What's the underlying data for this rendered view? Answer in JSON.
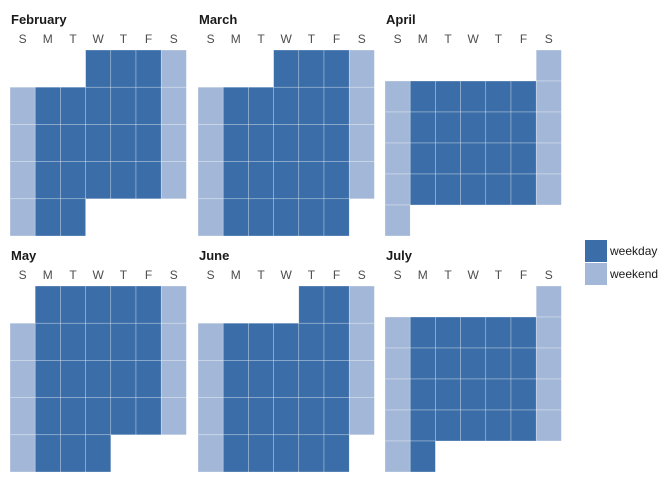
{
  "chart_data": {
    "type": "heatmap",
    "day_labels": [
      "S",
      "M",
      "T",
      "W",
      "T",
      "F",
      "S"
    ],
    "colors": {
      "weekday": "#3b6ea8",
      "weekend": "#a3b8d8",
      "cell_border": "#ffffff"
    },
    "legend": {
      "placement": "right",
      "entries": [
        {
          "key": "weekday",
          "label": "weekday"
        },
        {
          "key": "weekend",
          "label": "weekend"
        }
      ]
    },
    "months": [
      {
        "name": "February",
        "start_weekday": 3,
        "days": 28
      },
      {
        "name": "March",
        "start_weekday": 3,
        "days": 31
      },
      {
        "name": "April",
        "start_weekday": 6,
        "days": 30
      },
      {
        "name": "May",
        "start_weekday": 1,
        "days": 31
      },
      {
        "name": "June",
        "start_weekday": 4,
        "days": 30
      },
      {
        "name": "July",
        "start_weekday": 6,
        "days": 31
      }
    ]
  }
}
